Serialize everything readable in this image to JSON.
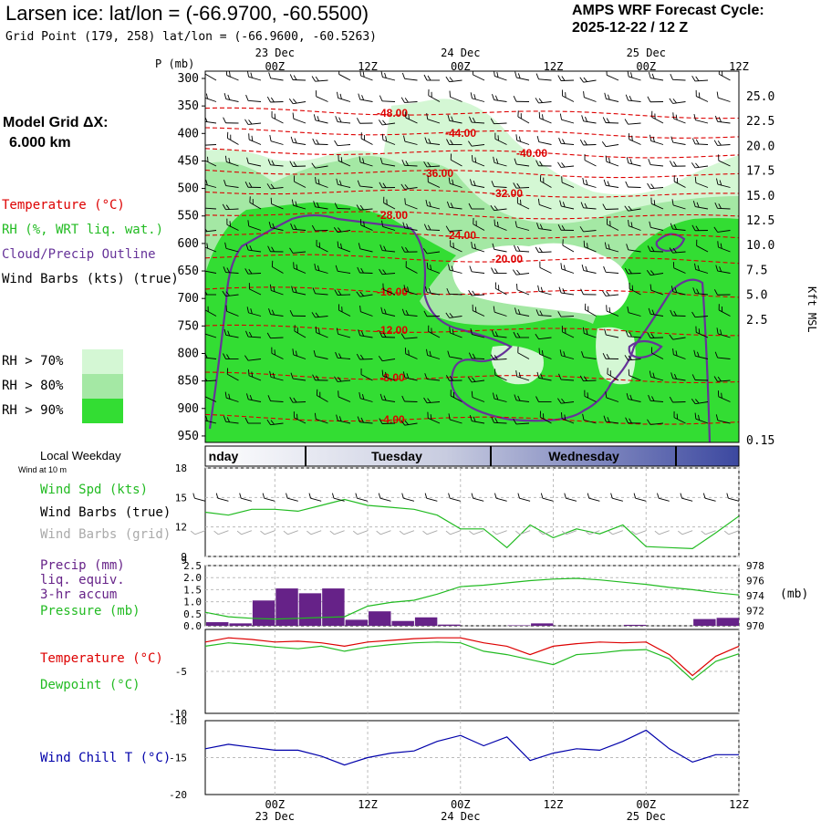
{
  "header": {
    "title": "Larsen ice:  lat/lon = (-66.9700, -60.5500)",
    "gridpoint": "Grid Point (179, 258) lat/lon = (-66.9600, -60.5263)",
    "cycle_line1": "AMPS WRF Forecast Cycle:",
    "cycle_line2": "2025-12-22 / 12  Z"
  },
  "model_grid": {
    "line1": "Model Grid ΔX:",
    "line2": "6.000 km"
  },
  "legend": {
    "temperature": "Temperature (°C)",
    "rh": "RH (%, WRT liq. wat.)",
    "cloud": "Cloud/Precip Outline",
    "wind": "Wind Barbs (kts) (true)",
    "rh70": "RH > 70%",
    "rh80": "RH > 80%",
    "rh90": "RH > 90%",
    "local_weekday": "Local Weekday",
    "wind_at": "Wind at 10 m",
    "wspd": "Wind Spd (kts)",
    "wbarbs_true": "Wind Barbs (true)",
    "wbarbs_grid": "Wind Barbs (grid)",
    "precip1": "Precip (mm)",
    "precip2": "liq. equiv.",
    "precip3": "3-hr accum",
    "pressure": "Pressure (mb)",
    "pressure_unit": "(mb)",
    "t2m": "Temperature (°C)",
    "dewpoint": "Dewpoint (°C)",
    "windchill": "Wind Chill T (°C)"
  },
  "colors": {
    "rh70": "#d4f7d4",
    "rh80": "#a4e8a4",
    "rh90": "#33dd33",
    "temperature": "#dd0000",
    "rh_text": "#22bb22",
    "cloud": "#663399",
    "wind_chill": "#0000aa",
    "precip": "#662288",
    "pressure": "#22bb22",
    "grid_barbs": "#aaaaaa"
  },
  "chart_data": {
    "time_axis": {
      "top_hours": [
        "00Z",
        "12Z",
        "00Z",
        "12Z",
        "00Z",
        "12Z"
      ],
      "top_dates": [
        "23 Dec",
        "24 Dec",
        "25 Dec"
      ],
      "bottom_hours": [
        "00Z",
        "12Z",
        "00Z",
        "12Z",
        "00Z",
        "12Z"
      ],
      "bottom_dates": [
        "23 Dec",
        "24 Dec",
        "25 Dec"
      ],
      "x_hours": [
        0,
        12,
        24,
        36,
        48,
        60
      ],
      "x_range": [
        -9,
        60
      ],
      "weekdays": [
        "nday",
        "Tuesday",
        "Wednesday"
      ]
    },
    "cross_section": {
      "type": "heatmap",
      "p_label": "P (mb)",
      "p_ticks": [
        "300",
        "350",
        "400",
        "450",
        "500",
        "550",
        "600",
        "650",
        "700",
        "750",
        "800",
        "850",
        "900",
        "950"
      ],
      "height_ticks": [
        "25.0",
        "22.5",
        "20.0",
        "17.5",
        "15.0",
        "12.5",
        "10.0",
        "7.5",
        "5.0",
        "2.5",
        "0.15"
      ],
      "height_label": "Kft MSL",
      "isotherms": [
        "-48.00",
        "-44.00",
        "-40.00",
        "-36.00",
        "-32.00",
        "-28.00",
        "-24.00",
        "-20.00",
        "-16.00",
        "-12.00",
        "-8.00",
        "-4.00"
      ]
    },
    "panels": [
      {
        "type": "line",
        "name": "wind",
        "ylim": [
          9,
          18
        ],
        "yticks": [
          "18",
          "15",
          "12",
          "9"
        ],
        "x": [
          -9,
          -6,
          -3,
          0,
          3,
          6,
          9,
          12,
          15,
          18,
          21,
          24,
          27,
          30,
          33,
          36,
          39,
          42,
          45,
          48,
          51,
          54,
          57,
          60
        ],
        "wind_speed": [
          13.5,
          13.2,
          13.8,
          13.8,
          13.6,
          14.2,
          14.8,
          14.2,
          14.0,
          13.8,
          13.2,
          11.8,
          11.8,
          9.9,
          12.2,
          10.9,
          11.8,
          11.3,
          12.2,
          10.0,
          9.9,
          9.8,
          11.4,
          13.1
        ]
      },
      {
        "type": "bar",
        "name": "precip_pressure",
        "precip_ylim": [
          0,
          2.5
        ],
        "precip_ticks": [
          "2.5",
          "2.0",
          "1.5",
          "1.0",
          "0.5",
          "0.0"
        ],
        "pressure_ylim": [
          970,
          978
        ],
        "pressure_ticks": [
          "978",
          "976",
          "974",
          "972",
          "970"
        ],
        "x": [
          -9,
          -6,
          -3,
          0,
          3,
          6,
          9,
          12,
          15,
          18,
          21,
          24,
          27,
          30,
          33,
          36,
          39,
          42,
          45,
          48,
          51,
          54,
          57,
          60
        ],
        "precip": [
          0.0,
          0.15,
          0.1,
          1.05,
          1.55,
          1.35,
          1.55,
          0.25,
          0.6,
          0.2,
          0.35,
          0.05,
          0.0,
          0.0,
          0.02,
          0.1,
          0.0,
          0.0,
          0.0,
          0.04,
          0.0,
          0.0,
          0.28,
          0.33
        ],
        "pressure": [
          971.8,
          971.2,
          971.0,
          970.9,
          971.0,
          971.1,
          971.2,
          972.6,
          973.1,
          973.4,
          974.2,
          975.2,
          975.4,
          975.7,
          976.0,
          976.2,
          976.3,
          976.1,
          975.8,
          975.5,
          975.1,
          974.8,
          974.4,
          974.1
        ]
      },
      {
        "type": "line",
        "name": "temperature",
        "yticks": [
          "-5",
          "-10"
        ],
        "x": [
          -9,
          -6,
          -3,
          0,
          3,
          6,
          9,
          12,
          15,
          18,
          21,
          24,
          27,
          30,
          33,
          36,
          39,
          42,
          45,
          48,
          51,
          54,
          57,
          60
        ],
        "temperature": [
          -1.5,
          -1.0,
          -1.2,
          -1.5,
          -1.4,
          -1.6,
          -2.0,
          -1.5,
          -1.3,
          -1.1,
          -1.0,
          -1.0,
          -1.6,
          -2.0,
          -3.0,
          -2.0,
          -1.7,
          -1.5,
          -1.6,
          -1.5,
          -3.0,
          -5.5,
          -3.2,
          -2.0
        ],
        "dewpoint": [
          -2.0,
          -1.6,
          -1.8,
          -2.1,
          -2.3,
          -2.0,
          -2.6,
          -2.1,
          -1.8,
          -1.6,
          -1.5,
          -1.6,
          -2.6,
          -3.0,
          -3.6,
          -4.2,
          -3.0,
          -2.8,
          -2.5,
          -2.4,
          -3.5,
          -6.0,
          -3.8,
          -2.9
        ]
      },
      {
        "type": "line",
        "name": "wind_chill",
        "ylim": [
          -20,
          -10
        ],
        "yticks": [
          "-10",
          "-15",
          "-20"
        ],
        "x": [
          -9,
          -6,
          -3,
          0,
          3,
          6,
          9,
          12,
          15,
          18,
          21,
          24,
          27,
          30,
          33,
          36,
          39,
          42,
          45,
          48,
          51,
          54,
          57,
          60
        ],
        "wind_chill": [
          -13.8,
          -13.2,
          -13.6,
          -14.0,
          -14.0,
          -14.8,
          -16.0,
          -15.0,
          -14.4,
          -14.1,
          -12.8,
          -12.0,
          -13.4,
          -12.2,
          -15.4,
          -14.4,
          -13.8,
          -14.0,
          -12.8,
          -11.3,
          -13.8,
          -15.6,
          -14.6,
          -14.6
        ]
      }
    ]
  }
}
